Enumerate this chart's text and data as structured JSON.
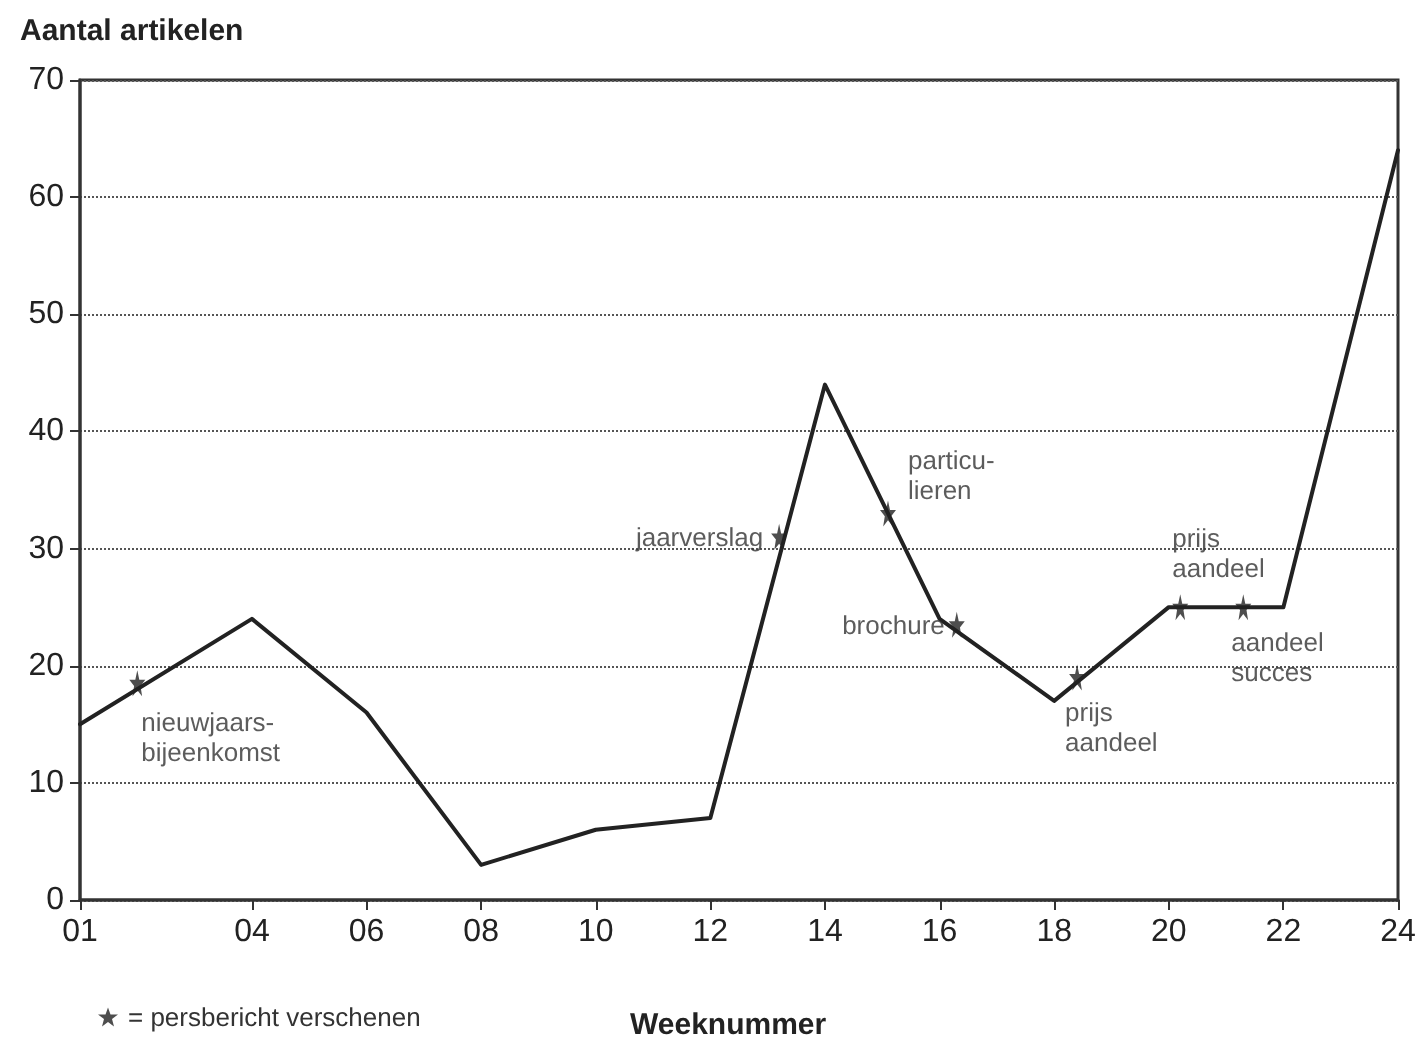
{
  "chart_data": {
    "type": "line",
    "ylabel": "Aantal artikelen",
    "xlabel": "Weeknummer",
    "xlim": [
      1,
      24
    ],
    "xticks": [
      {
        "value": 1,
        "label": "01"
      },
      {
        "value": 4,
        "label": "04"
      },
      {
        "value": 6,
        "label": "06"
      },
      {
        "value": 8,
        "label": "08"
      },
      10,
      12,
      14,
      16,
      18,
      20,
      22,
      24
    ],
    "ylim": [
      0,
      70
    ],
    "yticks": [
      0,
      10,
      20,
      30,
      40,
      50,
      60,
      70
    ],
    "grid": "y",
    "legend": "bottom left",
    "line_style": "solid",
    "series": [
      {
        "color": "#222222",
        "marker": "none",
        "x": [
          1,
          4,
          6,
          8,
          10,
          12,
          14,
          16,
          18,
          20,
          22,
          24
        ],
        "values": [
          15,
          24,
          16,
          3,
          6,
          7,
          44,
          24,
          17,
          25,
          25,
          64
        ]
      },
      {
        "type": "scatter",
        "name": "= persbericht verschenen",
        "color": "#222222",
        "marker": "star",
        "x": [
          2,
          13.2,
          15.1,
          16.3,
          18.4,
          20.2,
          21.3
        ],
        "values": [
          18.5,
          31,
          33,
          23.5,
          19,
          25,
          25
        ]
      }
    ],
    "annotations": [
      {
        "text": "nieuwjaars-\nbijeenkomst",
        "x": 2,
        "y": 18.5
      },
      {
        "text": "jaarverslag",
        "x": 13.2,
        "y": 31
      },
      {
        "text": "particu-\nlieren",
        "x": 15.1,
        "y": 33
      },
      {
        "text": "brochure",
        "x": 16.3,
        "y": 23.5
      },
      {
        "text": "prijs\naandeel",
        "x": 18.4,
        "y": 19
      },
      {
        "text": "prijs\naandeel",
        "x": 20.2,
        "y": 25
      },
      {
        "text": "aandeel\nsucces",
        "x": 21.3,
        "y": 25
      }
    ]
  }
}
